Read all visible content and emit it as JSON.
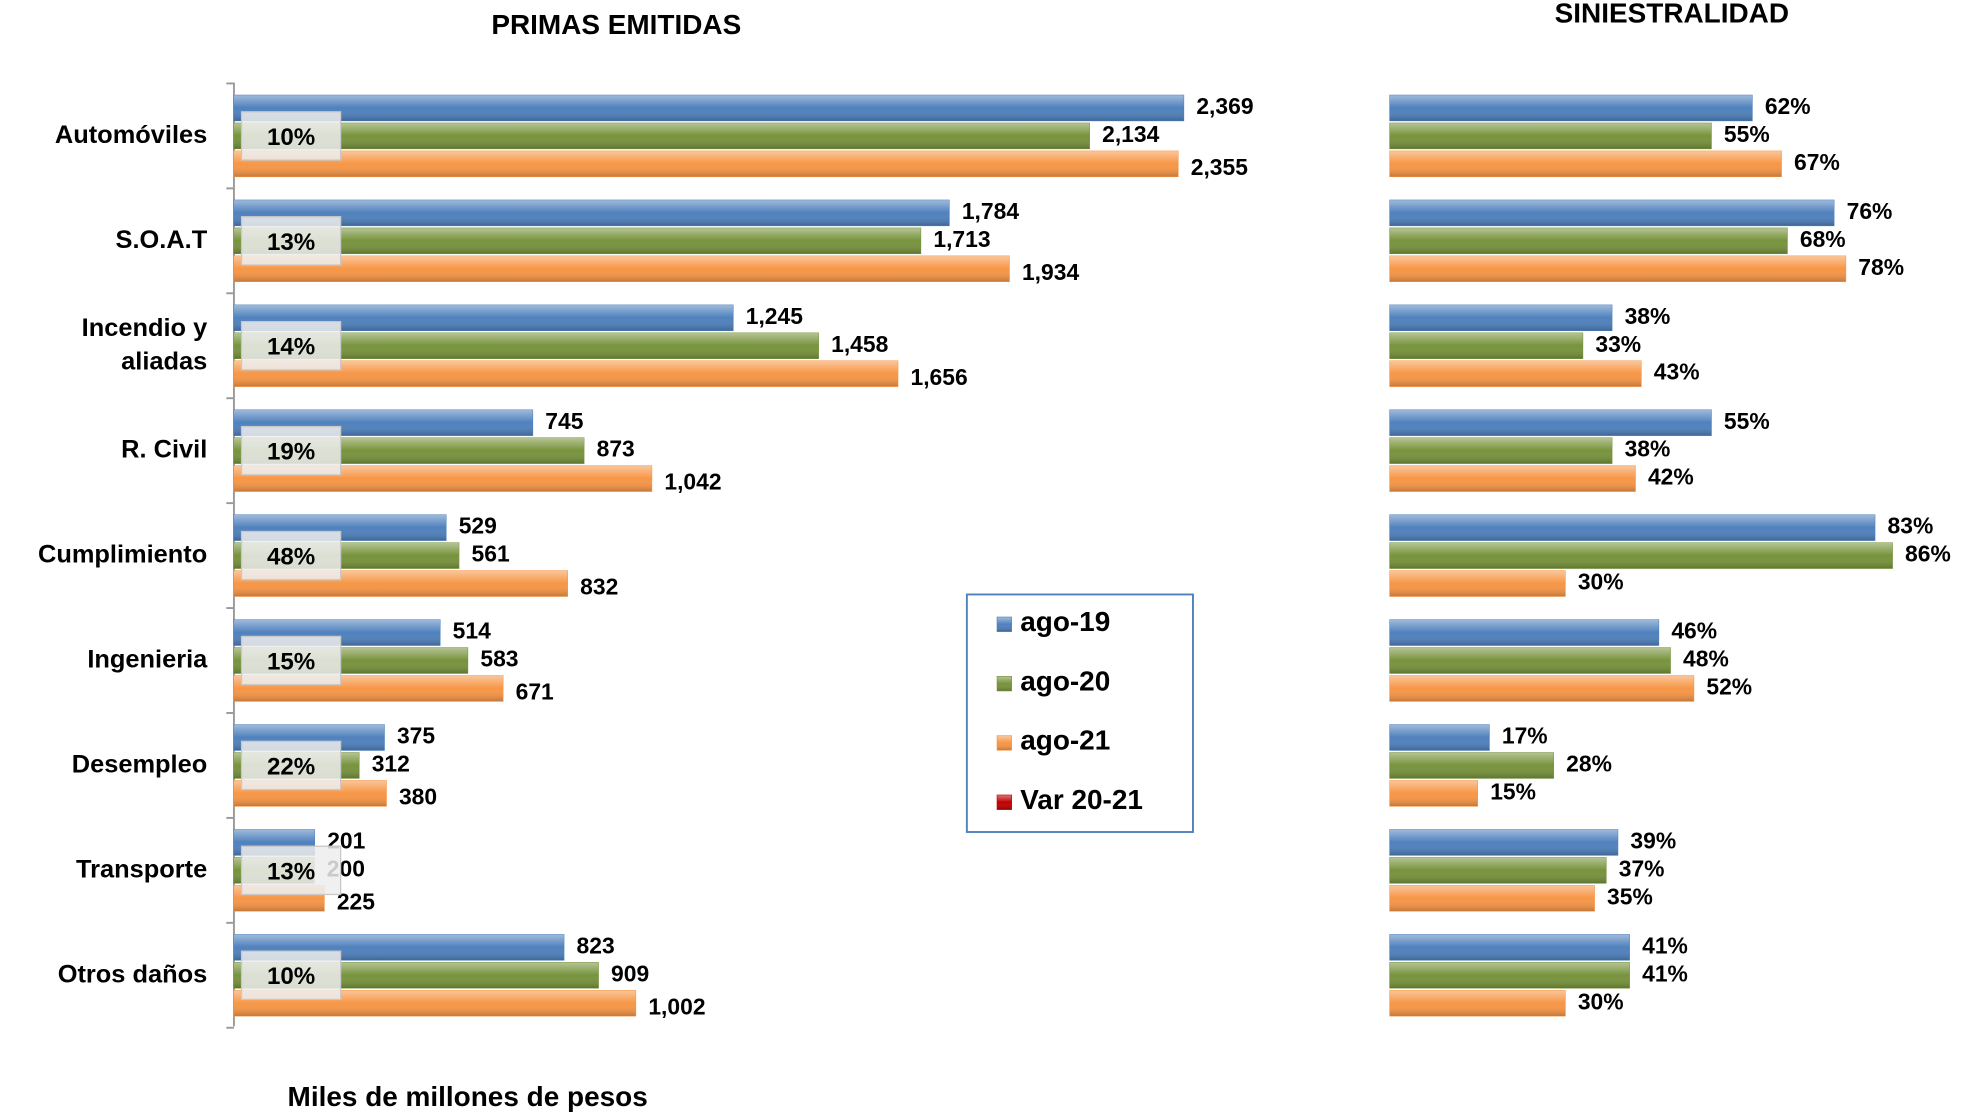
{
  "chart_data": [
    {
      "type": "bar",
      "orientation": "horizontal",
      "title": "PRIMAS EMITIDAS",
      "xlabel": "Miles de millones de pesos",
      "categories": [
        "Automóviles",
        "S.O.A.T",
        "Incendio y\naliadas",
        "R. Civil",
        "Cumplimiento",
        "Ingenieria",
        "Desempleo",
        "Transporte",
        "Otros daños"
      ],
      "xlim": [
        0,
        2500
      ],
      "series": [
        {
          "name": "ago-19",
          "color": "#4f81bd",
          "values": [
            2369,
            1784,
            1245,
            745,
            529,
            514,
            375,
            201,
            823
          ],
          "value_labels": [
            "2,369",
            "1,784",
            "1,245",
            "745",
            "529",
            "514",
            "375",
            "201",
            "823"
          ]
        },
        {
          "name": "ago-20",
          "color": "#77933c",
          "values": [
            2134,
            1713,
            1458,
            873,
            561,
            583,
            312,
            200,
            909
          ],
          "value_labels": [
            "2,134",
            "1,713",
            "1,458",
            "873",
            "561",
            "583",
            "312",
            "200",
            "909"
          ]
        },
        {
          "name": "ago-21",
          "color": "#f79646",
          "values": [
            2355,
            1934,
            1656,
            1042,
            832,
            671,
            380,
            225,
            1002
          ],
          "value_labels": [
            "2,355",
            "1,934",
            "1,656",
            "1,042",
            "832",
            "671",
            "380",
            "225",
            "1,002"
          ]
        },
        {
          "name": "Var 20-21",
          "color": "#c00000",
          "values": [
            10,
            13,
            14,
            19,
            48,
            15,
            22,
            13,
            10
          ],
          "value_labels": [
            "10%",
            "13%",
            "14%",
            "19%",
            "48%",
            "15%",
            "22%",
            "13%",
            "10%"
          ]
        }
      ],
      "legend": "center-right"
    },
    {
      "type": "bar",
      "orientation": "horizontal",
      "title": "SINIESTRALIDAD",
      "xlim": [
        0,
        100
      ],
      "series": [
        {
          "name": "ago-19",
          "color": "#4f81bd",
          "label_color": "#1f3864",
          "values": [
            62,
            76,
            38,
            55,
            83,
            46,
            17,
            39,
            41
          ],
          "value_labels": [
            "62%",
            "76%",
            "38%",
            "55%",
            "83%",
            "46%",
            "17%",
            "39%",
            "41%"
          ]
        },
        {
          "name": "ago-20",
          "color": "#77933c",
          "label_color": "#4f6228",
          "values": [
            55,
            68,
            33,
            38,
            86,
            48,
            28,
            37,
            41
          ],
          "value_labels": [
            "55%",
            "68%",
            "33%",
            "38%",
            "86%",
            "48%",
            "28%",
            "37%",
            "41%"
          ]
        },
        {
          "name": "ago-21",
          "color": "#f79646",
          "label_color": "#984807",
          "values": [
            67,
            78,
            43,
            42,
            30,
            52,
            15,
            35,
            30
          ],
          "value_labels": [
            "67%",
            "78%",
            "43%",
            "42%",
            "30%",
            "52%",
            "15%",
            "35%",
            "30%"
          ]
        }
      ]
    }
  ]
}
